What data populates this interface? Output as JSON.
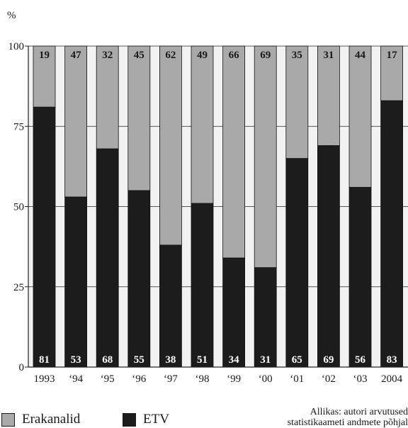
{
  "chart_data": {
    "type": "bar",
    "stacked": true,
    "unit_label": "%",
    "categories": [
      "1993",
      "‘94",
      "‘95",
      "‘96",
      "‘97",
      "‘98",
      "‘99",
      "‘00",
      "‘01",
      "‘02",
      "‘03",
      "2004"
    ],
    "series": [
      {
        "name": "ETV",
        "values": [
          81,
          53,
          68,
          55,
          38,
          51,
          34,
          31,
          65,
          69,
          56,
          83
        ],
        "color": "#1c1c1c"
      },
      {
        "name": "Erakanalid",
        "values": [
          19,
          47,
          32,
          45,
          62,
          49,
          66,
          69,
          35,
          31,
          44,
          17
        ],
        "color": "#a9a9a9"
      }
    ],
    "ylim": [
      0,
      100
    ],
    "yticks": [
      0,
      25,
      50,
      75,
      100
    ],
    "grid": true,
    "legend_placement": "bottom-left",
    "colors": {
      "plot_background": "#f2f2f2",
      "dark_label": "#ffffff",
      "light_label": "#1a1a1a"
    }
  },
  "legend": [
    {
      "label": "Erakanalid",
      "color": "#a9a9a9"
    },
    {
      "label": "ETV",
      "color": "#1c1c1c"
    }
  ],
  "source": {
    "line1": "Allikas: autori arvutused",
    "line2": "statistikaameti andmete põhjal"
  }
}
